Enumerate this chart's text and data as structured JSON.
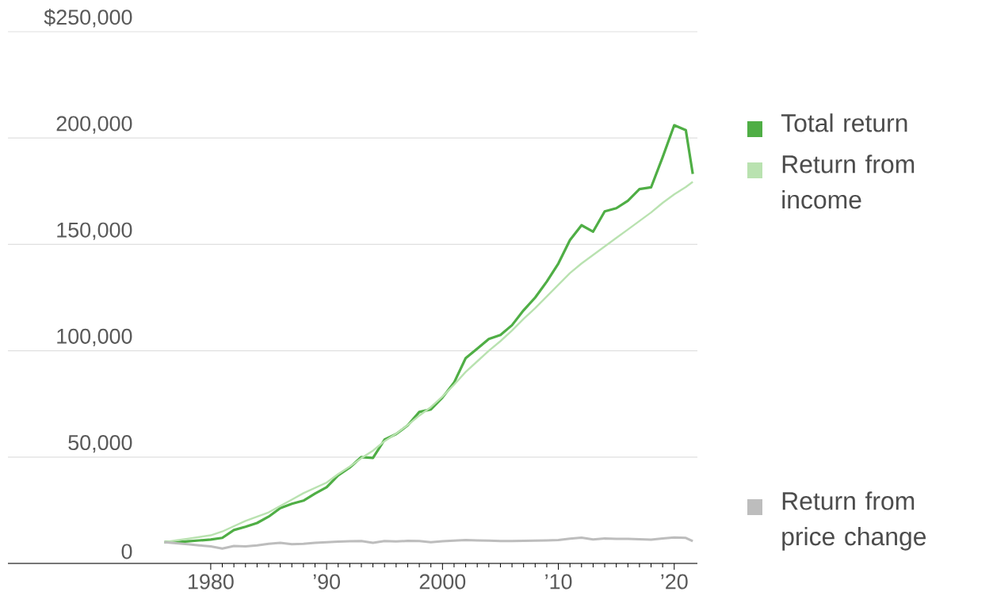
{
  "chart_data": {
    "type": "line",
    "x": [
      1976,
      1977,
      1978,
      1979,
      1980,
      1981,
      1982,
      1983,
      1984,
      1985,
      1986,
      1987,
      1988,
      1989,
      1990,
      1991,
      1992,
      1993,
      1994,
      1995,
      1996,
      1997,
      1998,
      1999,
      2000,
      2001,
      2002,
      2003,
      2004,
      2005,
      2006,
      2007,
      2008,
      2009,
      2010,
      2011,
      2012,
      2013,
      2014,
      2015,
      2016,
      2017,
      2018,
      2019,
      2020,
      2021,
      2021.6
    ],
    "series": [
      {
        "name": "Total return",
        "color": "#4fae45",
        "values": [
          10000,
          10000,
          10400,
          10800,
          11200,
          12000,
          15700,
          17200,
          19000,
          22000,
          26000,
          28000,
          29500,
          32800,
          35800,
          41400,
          45100,
          50000,
          49600,
          58200,
          60800,
          64900,
          71200,
          72400,
          78000,
          85000,
          96500,
          101000,
          105500,
          107400,
          112000,
          119000,
          125000,
          132500,
          141000,
          152000,
          159000,
          156000,
          165500,
          167000,
          170500,
          176000,
          176800,
          191000,
          206000,
          203700,
          183100
        ]
      },
      {
        "name": "Return from income",
        "color": "#b9e2b0",
        "values": [
          10000,
          10800,
          11600,
          12400,
          13200,
          15000,
          17500,
          20000,
          22000,
          24000,
          27000,
          30000,
          33000,
          35500,
          38000,
          42000,
          45500,
          49500,
          53000,
          57500,
          61000,
          65000,
          69500,
          73500,
          78500,
          84000,
          90000,
          95000,
          100000,
          104500,
          109500,
          115000,
          120000,
          125500,
          131000,
          136500,
          141000,
          145000,
          149000,
          153000,
          157000,
          161000,
          165000,
          169500,
          173500,
          177000,
          179400
        ]
      },
      {
        "name": "Return from price change",
        "color": "#bdbdbd",
        "values": [
          10000,
          9500,
          9000,
          8500,
          8000,
          7000,
          8200,
          8000,
          8500,
          9200,
          9700,
          9000,
          9200,
          9700,
          10000,
          10200,
          10400,
          10500,
          9700,
          10500,
          10300,
          10600,
          10500,
          10000,
          10400,
          10700,
          11000,
          10800,
          10700,
          10500,
          10500,
          10600,
          10700,
          10800,
          11000,
          11600,
          12100,
          11300,
          11700,
          11500,
          11500,
          11400,
          11200,
          11700,
          12200,
          12000,
          10500
        ]
      }
    ],
    "xlim": [
      1962.5,
      2022
    ],
    "xticks": [
      1980,
      {
        "value": 1990,
        "label": "’90"
      },
      2000,
      {
        "value": 2010,
        "label": "’10"
      },
      {
        "value": 2020,
        "label": "’20"
      }
    ],
    "ylim": [
      0,
      250000
    ],
    "yticks": [
      0,
      {
        "value": 50000,
        "label": "50,000"
      },
      {
        "value": 100000,
        "label": "100,000"
      },
      {
        "value": 150000,
        "label": "150,000"
      },
      {
        "value": 200000,
        "label": "200,000"
      },
      {
        "value": 250000,
        "label": "$250,000"
      }
    ],
    "grid": "y",
    "legend": "right"
  }
}
